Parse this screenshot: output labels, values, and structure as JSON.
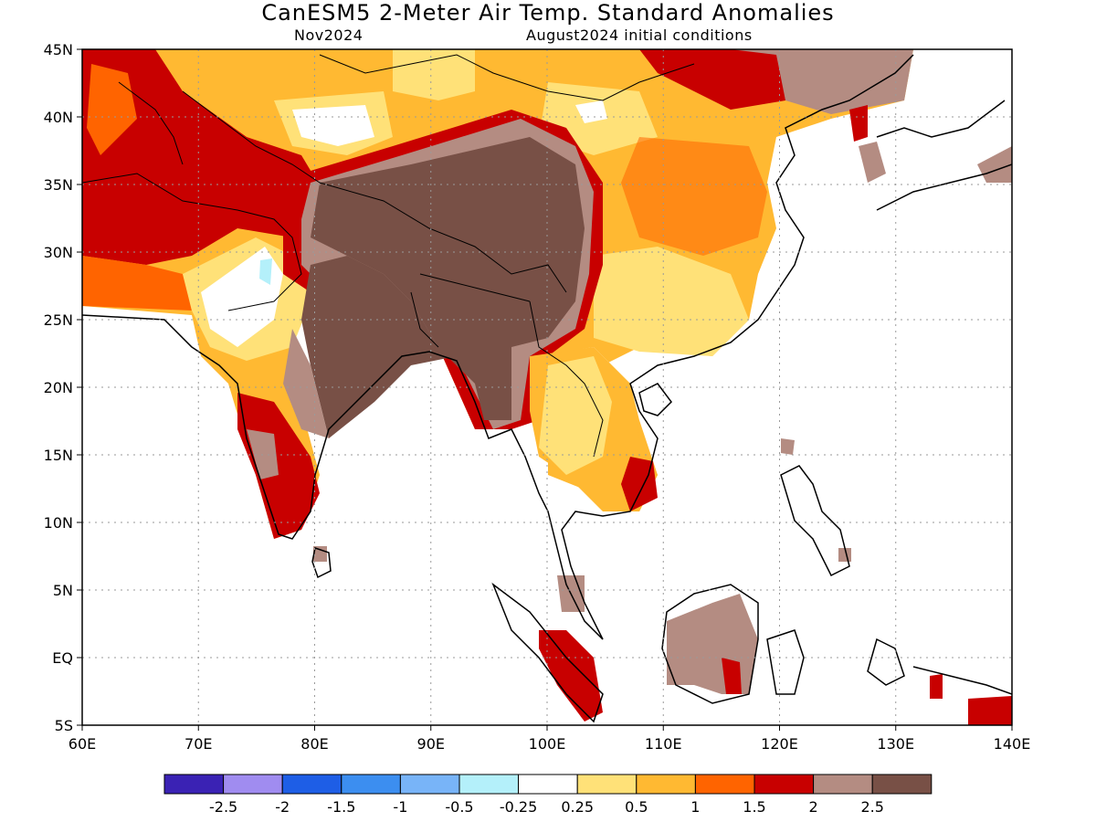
{
  "header": {
    "title": "CanESM5 2-Meter Air Temp. Standard Anomalies",
    "valid_month": "Nov2024",
    "initial_conditions": "August2024 initial conditions"
  },
  "map": {
    "lon_labels": [
      "60E",
      "70E",
      "80E",
      "90E",
      "100E",
      "110E",
      "120E",
      "130E",
      "140E"
    ],
    "lat_labels": [
      "45N",
      "40N",
      "35N",
      "30N",
      "25N",
      "20N",
      "15N",
      "10N",
      "5N",
      "EQ",
      "5S"
    ],
    "lon_range": [
      60,
      140
    ],
    "lat_range": [
      -5,
      45
    ],
    "grid": "dotted"
  },
  "colorbar": {
    "bins": [
      {
        "color": "#3a22b4"
      },
      {
        "color": "#a08cf0"
      },
      {
        "color": "#1e5ee6"
      },
      {
        "color": "#3c8ef0"
      },
      {
        "color": "#78b4f8"
      },
      {
        "color": "#b4f0fa"
      },
      {
        "color": "#ffffff"
      },
      {
        "color": "#ffe178"
      },
      {
        "color": "#ffb932"
      },
      {
        "color": "#ff6400"
      },
      {
        "color": "#c80000"
      },
      {
        "color": "#b48c82"
      },
      {
        "color": "#785046"
      }
    ],
    "labels": [
      "-2.5",
      "-2",
      "-1.5",
      "-1",
      "-0.5",
      "-0.25",
      "0.25",
      "0.5",
      "1",
      "1.5",
      "2",
      "2.5"
    ]
  }
}
